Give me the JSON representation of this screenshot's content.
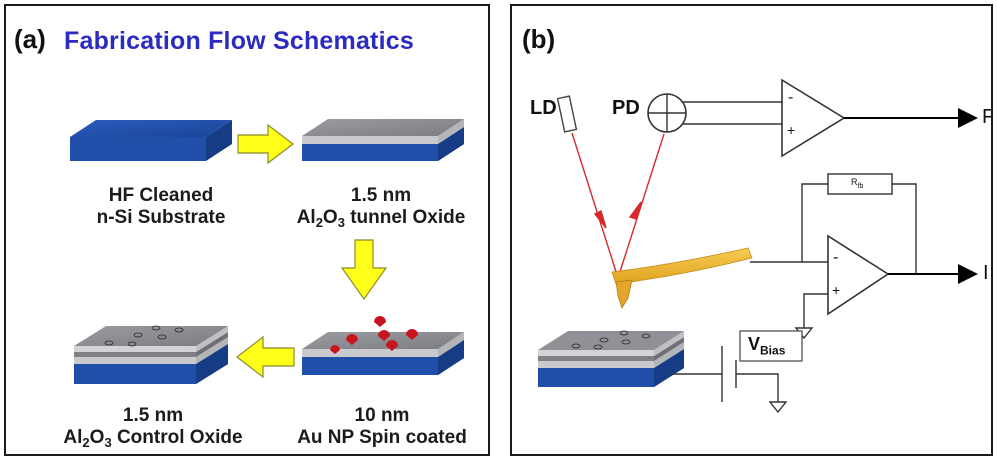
{
  "panel_a": {
    "label": "(a)",
    "title": "Fabrication Flow Schematics",
    "steps": [
      {
        "line1": "HF Cleaned",
        "line2": "n-Si Substrate"
      },
      {
        "line1": "1.5 nm",
        "line2_pre": "Al",
        "sub1": "2",
        "line2_mid": "O",
        "sub2": "3",
        "line2_post": " tunnel Oxide"
      },
      {
        "line1": "10 nm",
        "line2": "Au NP Spin coated"
      },
      {
        "line1": "1.5 nm",
        "line2_pre": "Al",
        "sub1": "2",
        "line2_mid": "O",
        "sub2": "3",
        "line2_post": " Control Oxide"
      }
    ]
  },
  "panel_b": {
    "label": "(b)",
    "ld": "LD",
    "pd": "PD",
    "rfb": "R",
    "rfb_sub": "fb",
    "vbias": "V",
    "vbias_sub": "Bias",
    "minus": "-",
    "plus": "+",
    "out_top": "F",
    "out_bottom": "I"
  },
  "colors": {
    "title_blue": "#2b2bc2",
    "substrate_blue": "#1f4fa8",
    "oxide_gray": "#8d8f93",
    "arrow_yellow": "#ffff1a",
    "laser_red": "#d62a2a",
    "cantilever_gold": "#f0b430",
    "au_np_red": "#c8141e"
  }
}
